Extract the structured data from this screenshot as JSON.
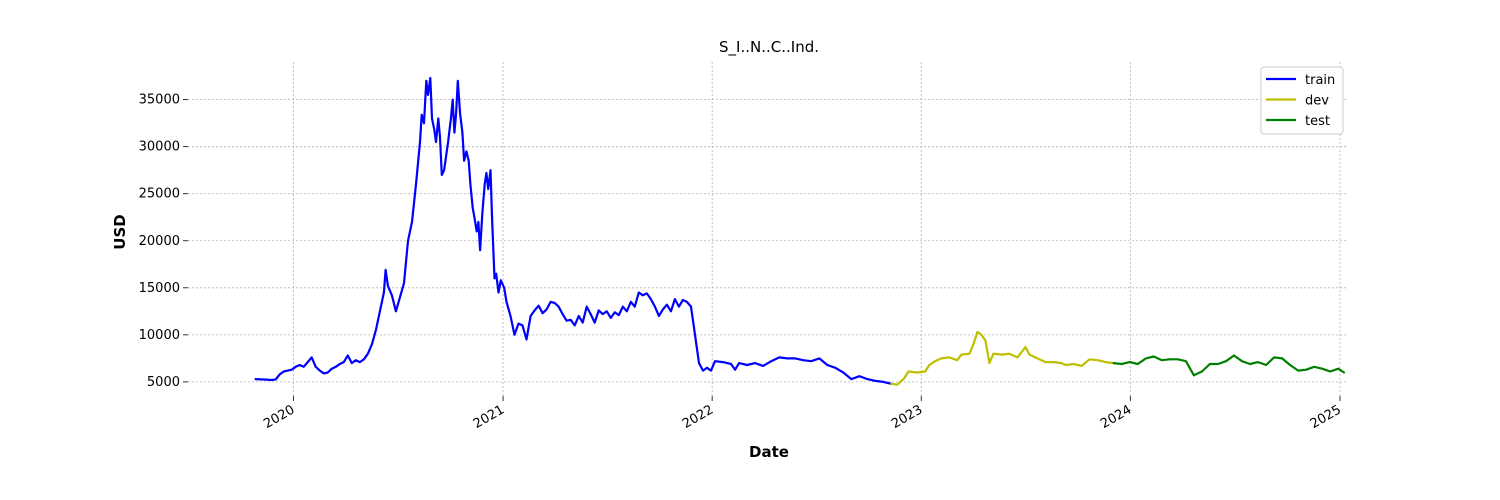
{
  "chart_data": {
    "type": "line",
    "title": "S_I..N..C..Ind.",
    "xlabel": "Date",
    "ylabel": "USD",
    "xlim": [
      "2019-07-01",
      "2025-01-15"
    ],
    "ylim": [
      3500,
      39000
    ],
    "x_ticks": [
      "2020",
      "2021",
      "2022",
      "2023",
      "2024",
      "2025"
    ],
    "y_ticks": [
      5000,
      10000,
      15000,
      20000,
      25000,
      30000,
      35000
    ],
    "grid": true,
    "legend_position": "top-right",
    "series": [
      {
        "name": "train",
        "color": "#0000ff",
        "points": [
          [
            "2019-10-27",
            5300
          ],
          [
            "2019-11-10",
            5250
          ],
          [
            "2019-11-24",
            5200
          ],
          [
            "2019-12-01",
            5250
          ],
          [
            "2019-12-08",
            5800
          ],
          [
            "2019-12-15",
            6100
          ],
          [
            "2019-12-29",
            6300
          ],
          [
            "2020-01-05",
            6600
          ],
          [
            "2020-01-12",
            6800
          ],
          [
            "2020-01-19",
            6600
          ],
          [
            "2020-01-26",
            7100
          ],
          [
            "2020-02-02",
            7600
          ],
          [
            "2020-02-09",
            6600
          ],
          [
            "2020-02-16",
            6200
          ],
          [
            "2020-02-23",
            5900
          ],
          [
            "2020-03-01",
            6000
          ],
          [
            "2020-03-08",
            6400
          ],
          [
            "2020-03-15",
            6600
          ],
          [
            "2020-03-22",
            6900
          ],
          [
            "2020-03-29",
            7100
          ],
          [
            "2020-04-05",
            7800
          ],
          [
            "2020-04-12",
            7000
          ],
          [
            "2020-04-19",
            7300
          ],
          [
            "2020-04-26",
            7100
          ],
          [
            "2020-05-03",
            7400
          ],
          [
            "2020-05-10",
            8000
          ],
          [
            "2020-05-17",
            9000
          ],
          [
            "2020-05-24",
            10500
          ],
          [
            "2020-05-31",
            12500
          ],
          [
            "2020-06-07",
            14500
          ],
          [
            "2020-06-10",
            16900
          ],
          [
            "2020-06-14",
            15200
          ],
          [
            "2020-06-21",
            14200
          ],
          [
            "2020-06-28",
            12500
          ],
          [
            "2020-07-05",
            14000
          ],
          [
            "2020-07-12",
            15500
          ],
          [
            "2020-07-19",
            20000
          ],
          [
            "2020-07-26",
            22000
          ],
          [
            "2020-08-02",
            26000
          ],
          [
            "2020-08-09",
            30500
          ],
          [
            "2020-08-12",
            33400
          ],
          [
            "2020-08-16",
            32500
          ],
          [
            "2020-08-20",
            37000
          ],
          [
            "2020-08-23",
            35500
          ],
          [
            "2020-08-27",
            37300
          ],
          [
            "2020-08-30",
            33000
          ],
          [
            "2020-09-03",
            31800
          ],
          [
            "2020-09-06",
            30500
          ],
          [
            "2020-09-10",
            33000
          ],
          [
            "2020-09-13",
            31000
          ],
          [
            "2020-09-16",
            27000
          ],
          [
            "2020-09-20",
            27500
          ],
          [
            "2020-09-27",
            30500
          ],
          [
            "2020-10-02",
            33000
          ],
          [
            "2020-10-05",
            35000
          ],
          [
            "2020-10-08",
            31500
          ],
          [
            "2020-10-11",
            33500
          ],
          [
            "2020-10-14",
            37000
          ],
          [
            "2020-10-18",
            33500
          ],
          [
            "2020-10-22",
            31500
          ],
          [
            "2020-10-25",
            28500
          ],
          [
            "2020-10-29",
            29500
          ],
          [
            "2020-11-02",
            28500
          ],
          [
            "2020-11-05",
            26000
          ],
          [
            "2020-11-09",
            23500
          ],
          [
            "2020-11-12",
            22500
          ],
          [
            "2020-11-16",
            21000
          ],
          [
            "2020-11-19",
            22000
          ],
          [
            "2020-11-22",
            19000
          ],
          [
            "2020-11-26",
            23000
          ],
          [
            "2020-11-30",
            26000
          ],
          [
            "2020-12-03",
            27200
          ],
          [
            "2020-12-06",
            25500
          ],
          [
            "2020-12-10",
            27500
          ],
          [
            "2020-12-13",
            22000
          ],
          [
            "2020-12-17",
            16000
          ],
          [
            "2020-12-20",
            16500
          ],
          [
            "2020-12-24",
            14500
          ],
          [
            "2020-12-28",
            15800
          ],
          [
            "2021-01-03",
            15000
          ],
          [
            "2021-01-07",
            13500
          ],
          [
            "2021-01-14",
            12000
          ],
          [
            "2021-01-21",
            10000
          ],
          [
            "2021-01-28",
            11200
          ],
          [
            "2021-02-04",
            11000
          ],
          [
            "2021-02-11",
            9500
          ],
          [
            "2021-02-18",
            12000
          ],
          [
            "2021-02-25",
            12600
          ],
          [
            "2021-03-04",
            13100
          ],
          [
            "2021-03-11",
            12300
          ],
          [
            "2021-03-18",
            12700
          ],
          [
            "2021-03-25",
            13500
          ],
          [
            "2021-04-01",
            13400
          ],
          [
            "2021-04-08",
            13000
          ],
          [
            "2021-04-15",
            12200
          ],
          [
            "2021-04-22",
            11500
          ],
          [
            "2021-04-29",
            11600
          ],
          [
            "2021-05-06",
            11000
          ],
          [
            "2021-05-13",
            12000
          ],
          [
            "2021-05-20",
            11300
          ],
          [
            "2021-05-27",
            13000
          ],
          [
            "2021-06-03",
            12200
          ],
          [
            "2021-06-10",
            11300
          ],
          [
            "2021-06-17",
            12600
          ],
          [
            "2021-06-24",
            12200
          ],
          [
            "2021-07-01",
            12500
          ],
          [
            "2021-07-08",
            11800
          ],
          [
            "2021-07-15",
            12400
          ],
          [
            "2021-07-22",
            12100
          ],
          [
            "2021-07-29",
            13000
          ],
          [
            "2021-08-05",
            12500
          ],
          [
            "2021-08-12",
            13500
          ],
          [
            "2021-08-19",
            13000
          ],
          [
            "2021-08-26",
            14500
          ],
          [
            "2021-09-02",
            14200
          ],
          [
            "2021-09-09",
            14400
          ],
          [
            "2021-09-16",
            13800
          ],
          [
            "2021-09-23",
            13000
          ],
          [
            "2021-09-30",
            12000
          ],
          [
            "2021-10-07",
            12700
          ],
          [
            "2021-10-14",
            13200
          ],
          [
            "2021-10-21",
            12500
          ],
          [
            "2021-10-28",
            13800
          ],
          [
            "2021-11-04",
            13000
          ],
          [
            "2021-11-11",
            13700
          ],
          [
            "2021-11-18",
            13500
          ],
          [
            "2021-11-25",
            13000
          ],
          [
            "2021-12-02",
            10000
          ],
          [
            "2021-12-09",
            7000
          ],
          [
            "2021-12-16",
            6200
          ],
          [
            "2021-12-23",
            6500
          ],
          [
            "2021-12-30",
            6200
          ],
          [
            "2022-01-06",
            7200
          ],
          [
            "2022-01-20",
            7100
          ],
          [
            "2022-02-03",
            6900
          ],
          [
            "2022-02-10",
            6300
          ],
          [
            "2022-02-17",
            7000
          ],
          [
            "2022-03-03",
            6800
          ],
          [
            "2022-03-17",
            7000
          ],
          [
            "2022-03-31",
            6700
          ],
          [
            "2022-04-14",
            7200
          ],
          [
            "2022-04-28",
            7600
          ],
          [
            "2022-05-12",
            7500
          ],
          [
            "2022-05-26",
            7500
          ],
          [
            "2022-06-09",
            7300
          ],
          [
            "2022-06-23",
            7200
          ],
          [
            "2022-07-07",
            7500
          ],
          [
            "2022-07-21",
            6800
          ],
          [
            "2022-08-04",
            6500
          ],
          [
            "2022-08-18",
            6000
          ],
          [
            "2022-09-01",
            5300
          ],
          [
            "2022-09-15",
            5600
          ],
          [
            "2022-09-29",
            5300
          ],
          [
            "2022-10-13",
            5100
          ],
          [
            "2022-10-27",
            5000
          ],
          [
            "2022-11-10",
            4800
          ]
        ]
      },
      {
        "name": "dev",
        "color": "#bfbf00",
        "points": [
          [
            "2022-11-10",
            4800
          ],
          [
            "2022-11-20",
            4700
          ],
          [
            "2022-12-01",
            5300
          ],
          [
            "2022-12-10",
            6100
          ],
          [
            "2022-12-25",
            6000
          ],
          [
            "2023-01-08",
            6100
          ],
          [
            "2023-01-15",
            6800
          ],
          [
            "2023-01-25",
            7200
          ],
          [
            "2023-02-05",
            7500
          ],
          [
            "2023-02-19",
            7600
          ],
          [
            "2023-03-05",
            7300
          ],
          [
            "2023-03-12",
            7900
          ],
          [
            "2023-03-26",
            8000
          ],
          [
            "2023-04-02",
            9000
          ],
          [
            "2023-04-09",
            10300
          ],
          [
            "2023-04-16",
            10000
          ],
          [
            "2023-04-23",
            9400
          ],
          [
            "2023-04-30",
            7000
          ],
          [
            "2023-05-07",
            8000
          ],
          [
            "2023-05-21",
            7900
          ],
          [
            "2023-06-04",
            8000
          ],
          [
            "2023-06-18",
            7600
          ],
          [
            "2023-07-02",
            8700
          ],
          [
            "2023-07-09",
            7900
          ],
          [
            "2023-07-23",
            7500
          ],
          [
            "2023-08-06",
            7100
          ],
          [
            "2023-08-20",
            7100
          ],
          [
            "2023-09-03",
            7000
          ],
          [
            "2023-09-10",
            6800
          ],
          [
            "2023-09-24",
            6900
          ],
          [
            "2023-10-08",
            6700
          ],
          [
            "2023-10-22",
            7400
          ],
          [
            "2023-11-05",
            7300
          ],
          [
            "2023-11-19",
            7100
          ],
          [
            "2023-12-03",
            7000
          ]
        ]
      },
      {
        "name": "test",
        "color": "#008000",
        "points": [
          [
            "2023-12-03",
            7000
          ],
          [
            "2023-12-17",
            6900
          ],
          [
            "2023-12-31",
            7100
          ],
          [
            "2024-01-14",
            6900
          ],
          [
            "2024-01-28",
            7500
          ],
          [
            "2024-02-11",
            7700
          ],
          [
            "2024-02-25",
            7300
          ],
          [
            "2024-03-10",
            7400
          ],
          [
            "2024-03-24",
            7400
          ],
          [
            "2024-04-07",
            7200
          ],
          [
            "2024-04-21",
            5700
          ],
          [
            "2024-05-05",
            6100
          ],
          [
            "2024-05-19",
            6900
          ],
          [
            "2024-06-02",
            6900
          ],
          [
            "2024-06-16",
            7200
          ],
          [
            "2024-06-30",
            7800
          ],
          [
            "2024-07-14",
            7200
          ],
          [
            "2024-07-28",
            6900
          ],
          [
            "2024-08-11",
            7100
          ],
          [
            "2024-08-25",
            6800
          ],
          [
            "2024-09-08",
            7600
          ],
          [
            "2024-09-22",
            7500
          ],
          [
            "2024-10-06",
            6800
          ],
          [
            "2024-10-20",
            6200
          ],
          [
            "2024-11-03",
            6300
          ],
          [
            "2024-11-17",
            6600
          ],
          [
            "2024-12-01",
            6400
          ],
          [
            "2024-12-15",
            6100
          ],
          [
            "2024-12-29",
            6400
          ],
          [
            "2025-01-08",
            6000
          ]
        ]
      }
    ]
  }
}
